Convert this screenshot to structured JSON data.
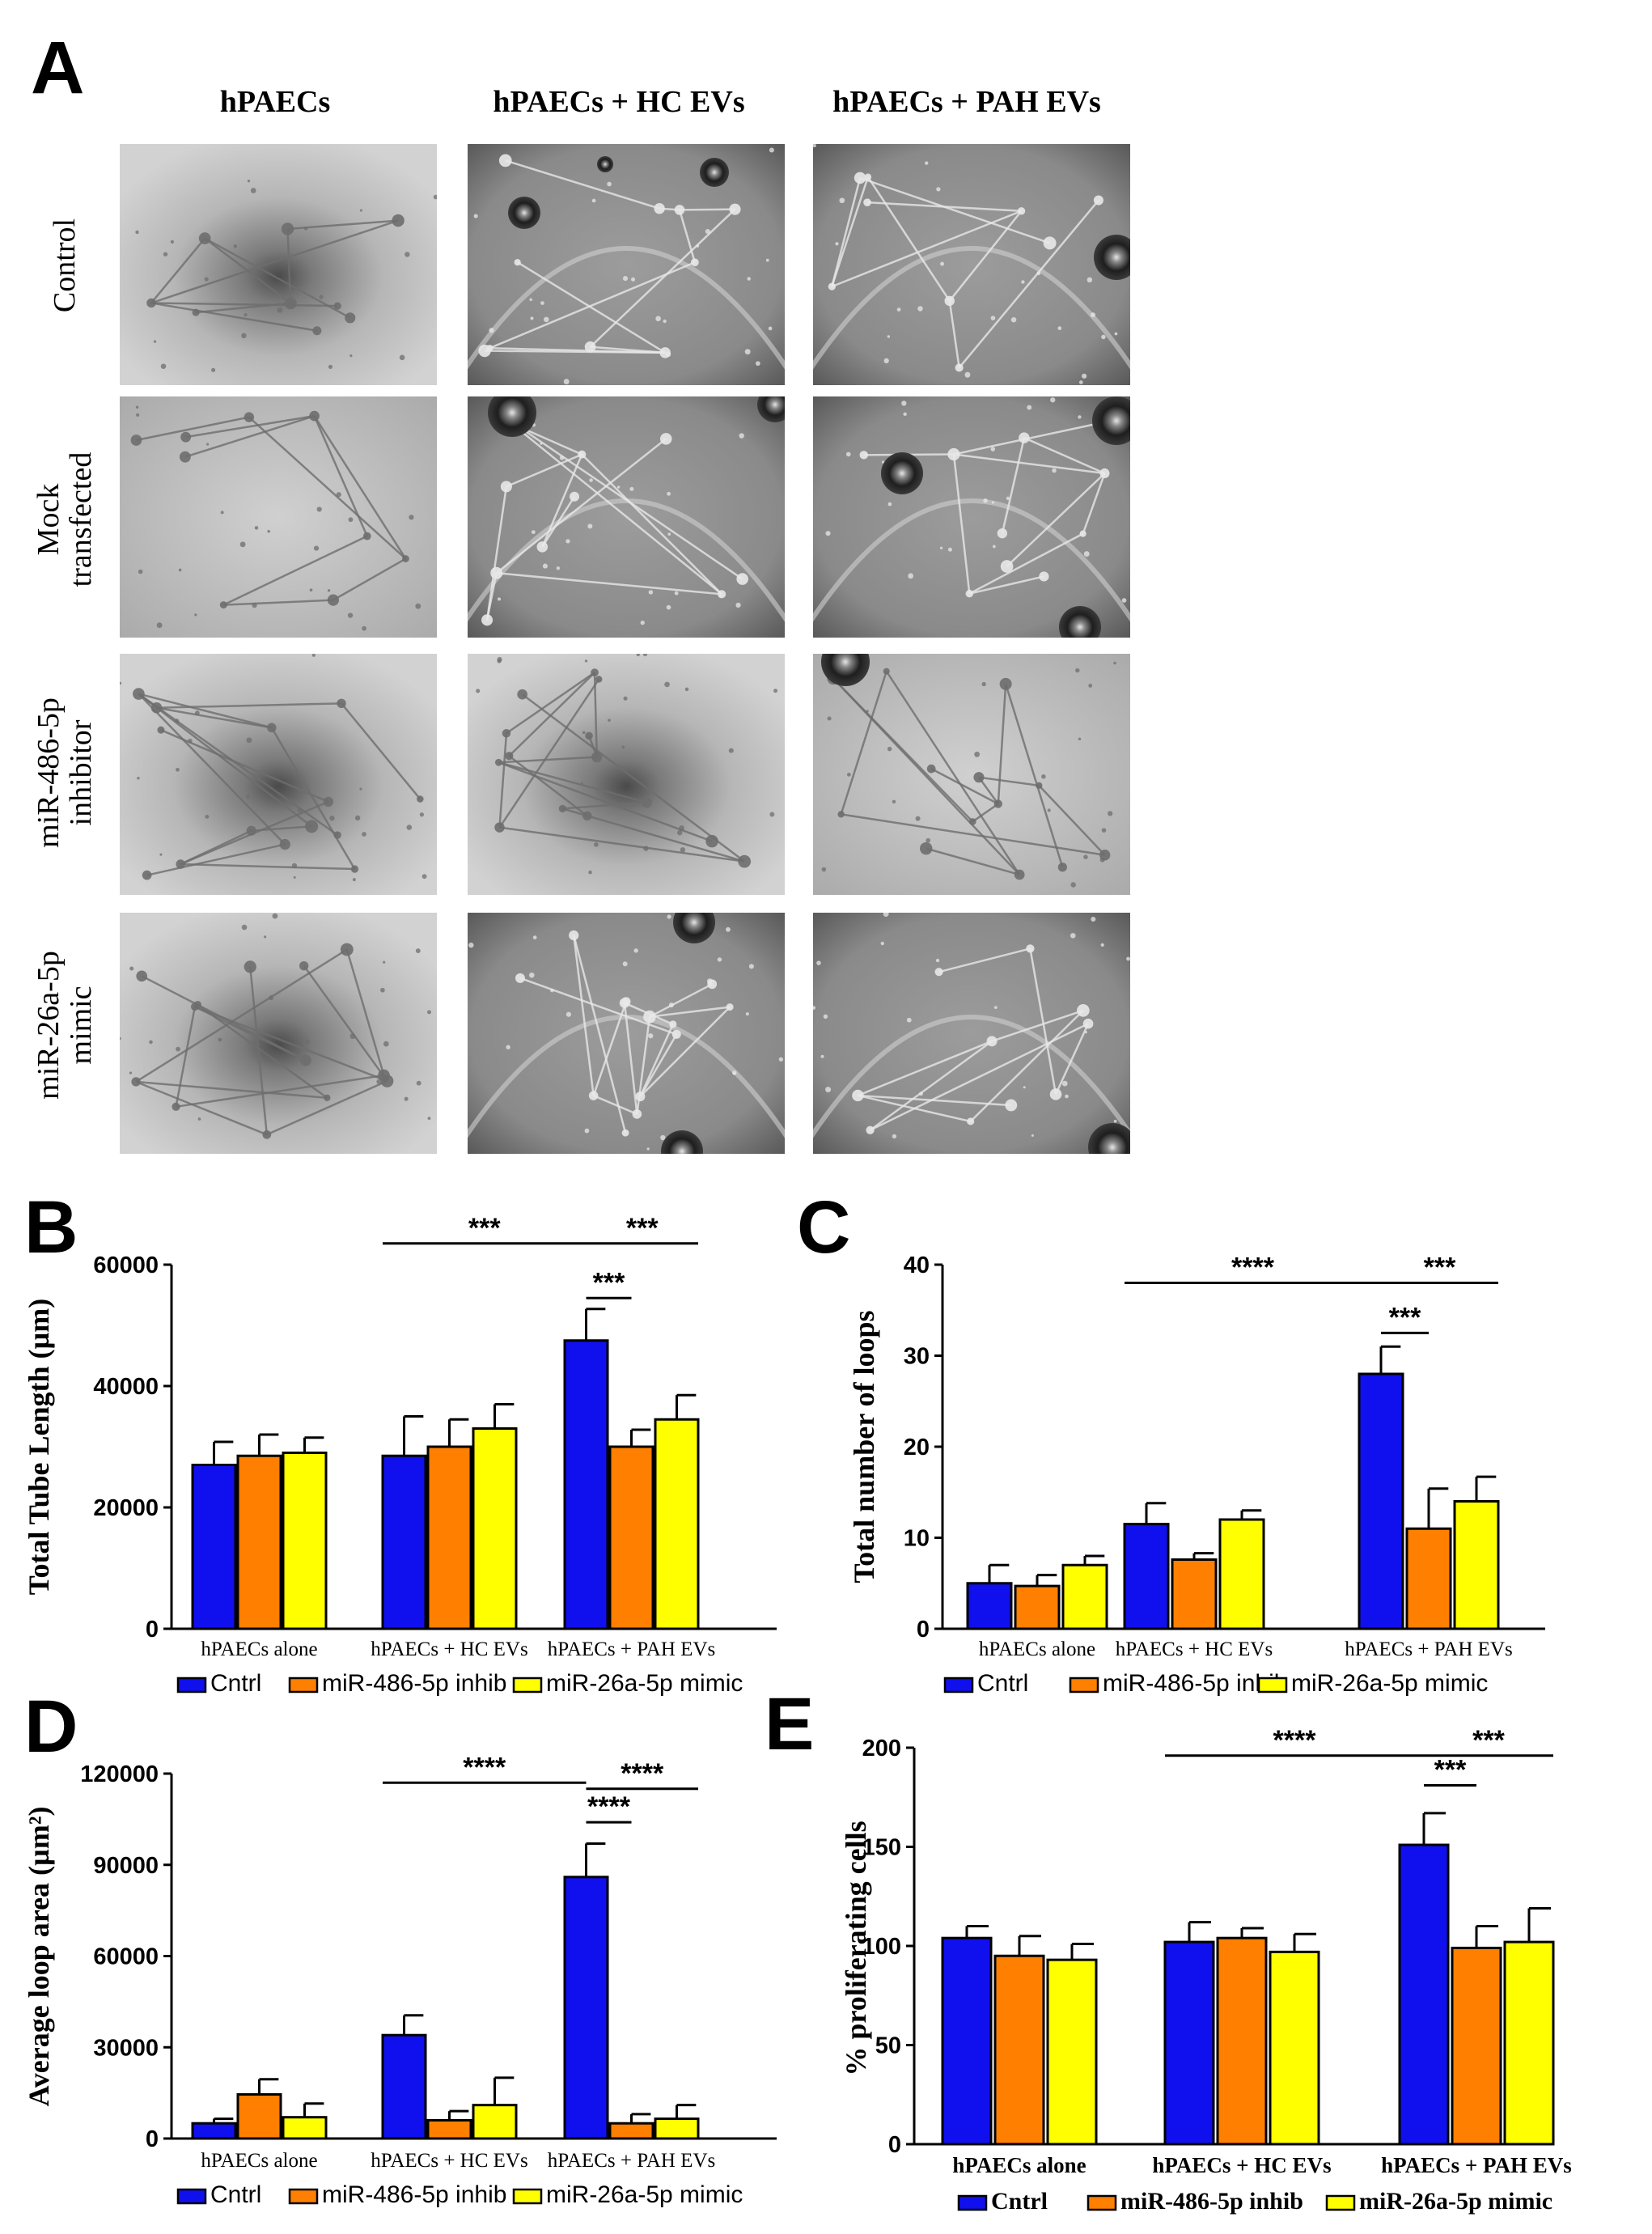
{
  "panel_a": {
    "letter": "A",
    "columns": [
      "hPAECs",
      "hPAECs + HC EVs",
      "hPAECs + PAH EVs"
    ],
    "rows": [
      [
        "Control"
      ],
      [
        "Mock",
        "transfected"
      ],
      [
        "miR-486-5p",
        "inhibitor"
      ],
      [
        "miR-26a-5p",
        "mimic"
      ]
    ]
  },
  "colors": {
    "cntrl": "#1010ee",
    "inhib": "#ff7f00",
    "mimic": "#ffff00"
  },
  "chart_data": [
    {
      "letter": "B",
      "type": "bar",
      "ylabel": "Total Tube Length (µm)",
      "ylim": [
        0,
        60000
      ],
      "ticks": [
        0,
        20000,
        40000,
        60000
      ],
      "tick_labels": [
        "0",
        "20000",
        "40000",
        "60000"
      ],
      "categories": [
        "hPAECs alone",
        "hPAECs + HC EVs",
        "hPAECs + PAH EVs"
      ],
      "series": [
        {
          "name": "Cntrl",
          "values": [
            27000,
            28500,
            47500
          ],
          "errors": [
            3800,
            6500,
            5200
          ]
        },
        {
          "name": "miR-486-5p inhib",
          "values": [
            28500,
            30000,
            30000
          ],
          "errors": [
            3500,
            4500,
            2800
          ]
        },
        {
          "name": "miR-26a-5p mimic",
          "values": [
            29000,
            33000,
            34500
          ],
          "errors": [
            2500,
            4000,
            4000
          ]
        }
      ],
      "annotations": [
        {
          "label": "***",
          "from": [
            1,
            0
          ],
          "to": [
            2,
            0
          ],
          "level": 63500
        },
        {
          "label": "***",
          "from": [
            2,
            0
          ],
          "to": [
            2,
            2
          ],
          "level": 63500
        },
        {
          "label": "***",
          "from": [
            2,
            0
          ],
          "to": [
            2,
            1
          ],
          "level": 54500
        }
      ]
    },
    {
      "letter": "C",
      "type": "bar",
      "ylabel": "Total number of loops",
      "ylim": [
        0,
        40
      ],
      "ticks": [
        0,
        10,
        20,
        30,
        40
      ],
      "tick_labels": [
        "0",
        "10",
        "20",
        "30",
        "40"
      ],
      "categories": [
        "hPAECs alone",
        "hPAECs + HC EVs",
        "hPAECs + PAH EVs"
      ],
      "series": [
        {
          "name": "Cntrl",
          "values": [
            5,
            11.5,
            28
          ],
          "errors": [
            2,
            2.3,
            3
          ]
        },
        {
          "name": "miR-486-5p inhib",
          "values": [
            4.7,
            7.6,
            11
          ],
          "errors": [
            1.2,
            0.7,
            4.4
          ]
        },
        {
          "name": "miR-26a-5p mimic",
          "values": [
            7,
            12,
            14
          ],
          "errors": [
            1,
            1,
            2.7
          ]
        }
      ],
      "annotations": [
        {
          "label": "****",
          "from": [
            1,
            0
          ],
          "to": [
            2,
            0
          ],
          "level": 38
        },
        {
          "label": "***",
          "from": [
            2,
            0
          ],
          "to": [
            2,
            2
          ],
          "level": 38
        },
        {
          "label": "***",
          "from": [
            2,
            0
          ],
          "to": [
            2,
            1
          ],
          "level": 32.5
        }
      ]
    },
    {
      "letter": "D",
      "type": "bar",
      "ylabel": "Average loop area (µm²)",
      "ylim": [
        0,
        120000
      ],
      "ticks": [
        0,
        30000,
        60000,
        90000,
        120000
      ],
      "tick_labels": [
        "0",
        "30000",
        "60000",
        "90000",
        "120000"
      ],
      "categories": [
        "hPAECs alone",
        "hPAECs + HC EVs",
        "hPAECs + PAH EVs"
      ],
      "series": [
        {
          "name": "Cntrl",
          "values": [
            5000,
            34000,
            86000
          ],
          "errors": [
            1500,
            6500,
            11000
          ]
        },
        {
          "name": "miR-486-5p inhib",
          "values": [
            14500,
            6000,
            5000
          ],
          "errors": [
            5000,
            3000,
            3000
          ]
        },
        {
          "name": "miR-26a-5p mimic",
          "values": [
            7000,
            11000,
            6500
          ],
          "errors": [
            4500,
            9000,
            4500
          ]
        }
      ],
      "annotations": [
        {
          "label": "****",
          "from": [
            1,
            0
          ],
          "to": [
            2,
            0
          ],
          "level": 117000
        },
        {
          "label": "****",
          "from": [
            2,
            0
          ],
          "to": [
            2,
            2
          ],
          "level": 115000
        },
        {
          "label": "****",
          "from": [
            2,
            0
          ],
          "to": [
            2,
            1
          ],
          "level": 104000
        }
      ]
    },
    {
      "letter": "E",
      "type": "bar",
      "ylabel": "% proliferating cells",
      "ylim": [
        0,
        200
      ],
      "ticks": [
        0,
        50,
        100,
        150,
        200
      ],
      "tick_labels": [
        "0",
        "50",
        "100",
        "150",
        "200"
      ],
      "categories": [
        "hPAECs alone",
        "hPAECs + HC EVs",
        "hPAECs + PAH EVs"
      ],
      "series": [
        {
          "name": "Cntrl",
          "values": [
            104,
            102,
            151
          ],
          "errors": [
            6,
            10,
            16
          ]
        },
        {
          "name": "miR-486-5p inhib",
          "values": [
            95,
            104,
            99
          ],
          "errors": [
            10,
            5,
            11
          ]
        },
        {
          "name": "miR-26a-5p mimic",
          "values": [
            93,
            97,
            102
          ],
          "errors": [
            8,
            9,
            17
          ]
        }
      ],
      "annotations": [
        {
          "label": "****",
          "from": [
            1,
            0
          ],
          "to": [
            2,
            0
          ],
          "level": 196
        },
        {
          "label": "***",
          "from": [
            2,
            0
          ],
          "to": [
            2,
            2
          ],
          "level": 196
        },
        {
          "label": "***",
          "from": [
            2,
            0
          ],
          "to": [
            2,
            1
          ],
          "level": 181
        }
      ]
    }
  ]
}
